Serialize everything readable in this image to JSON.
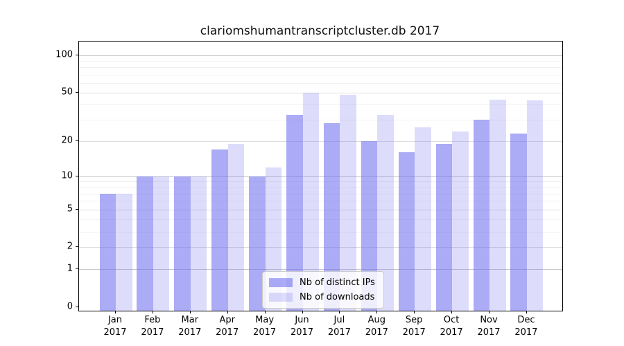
{
  "title": "clariomshumantranscriptcluster.db 2017",
  "chart_data": {
    "type": "bar",
    "title": "clariomshumantranscriptcluster.db 2017",
    "categories": [
      "Jan",
      "Feb",
      "Mar",
      "Apr",
      "May",
      "Jun",
      "Jul",
      "Aug",
      "Sep",
      "Oct",
      "Nov",
      "Dec"
    ],
    "year": "2017",
    "series": [
      {
        "name": "Nb of distinct IPs",
        "color": "#6666ee",
        "alpha": 0.55,
        "values": [
          7,
          10,
          10,
          17,
          10,
          33,
          28,
          20,
          16,
          19,
          30,
          23
        ]
      },
      {
        "name": "Nb of downloads",
        "color": "#6666ee",
        "alpha": 0.22,
        "values": [
          7,
          10,
          10,
          19,
          12,
          50,
          48,
          33,
          26,
          24,
          44,
          43
        ]
      }
    ],
    "yscale": "log1p",
    "ylim": [
      0,
      131
    ],
    "yticks": [
      100,
      50,
      20,
      10,
      5,
      2,
      1,
      0
    ],
    "minor_yticks": [
      3,
      4,
      6,
      7,
      8,
      9,
      30,
      40,
      60,
      70,
      80,
      90
    ],
    "grid": true,
    "legend_position": "lower center",
    "axis_color": "#000000",
    "major_grid_color": "#c9c9c9",
    "labeled_grid_color": "#dedede",
    "minor_grid_color": "#f1f1f1"
  }
}
